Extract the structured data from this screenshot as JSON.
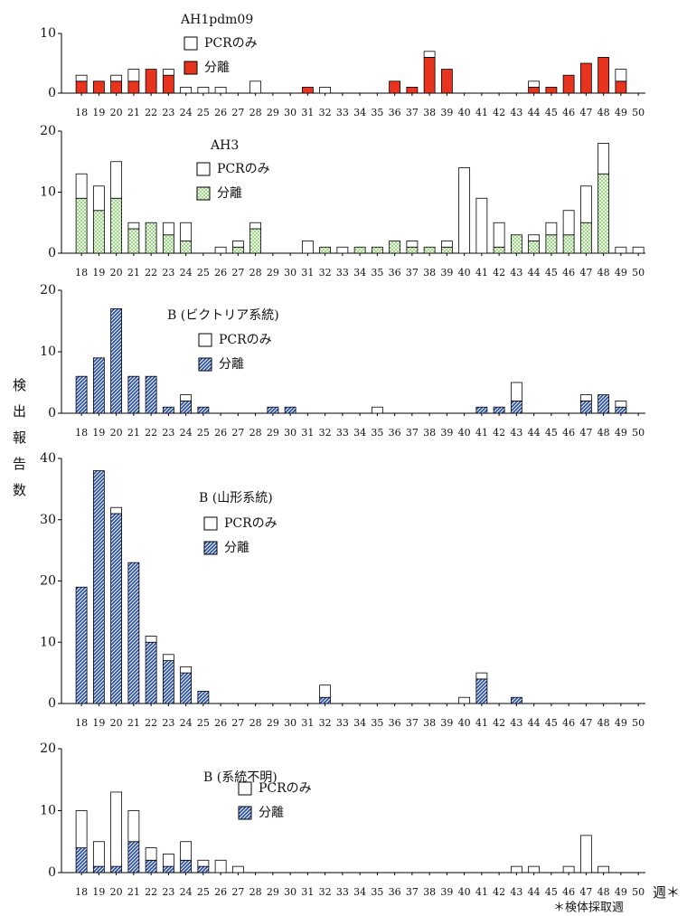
{
  "y_axis_label": "検出報告数",
  "x_axis_label": "週＊",
  "footnote": "＊検体採取週",
  "chart_data": [
    {
      "type": "stacked_bar",
      "title": "AH1pdm09",
      "categories": [
        "18",
        "19",
        "20",
        "21",
        "22",
        "23",
        "24",
        "25",
        "26",
        "27",
        "28",
        "29",
        "30",
        "31",
        "32",
        "33",
        "34",
        "35",
        "36",
        "37",
        "38",
        "39",
        "40",
        "41",
        "42",
        "43",
        "44",
        "45",
        "46",
        "47",
        "48",
        "49",
        "50"
      ],
      "series": [
        {
          "name": "分離",
          "color": "#e8341f",
          "values": [
            2,
            2,
            2,
            2,
            4,
            3,
            0,
            0,
            0,
            0,
            0,
            0,
            0,
            1,
            0,
            0,
            0,
            0,
            2,
            1,
            6,
            4,
            0,
            0,
            0,
            0,
            1,
            1,
            3,
            5,
            6,
            2,
            0
          ]
        },
        {
          "name": "PCRのみ",
          "color": "#ffffff",
          "values": [
            1,
            0,
            1,
            2,
            0,
            1,
            1,
            1,
            1,
            0,
            2,
            0,
            0,
            0,
            1,
            0,
            0,
            0,
            0,
            0,
            1,
            0,
            0,
            0,
            0,
            0,
            1,
            0,
            0,
            0,
            0,
            2,
            0
          ]
        }
      ],
      "ylim": [
        0,
        10
      ],
      "yticks": [
        0,
        10
      ]
    },
    {
      "type": "stacked_bar",
      "title": "AH3",
      "categories": [
        "18",
        "19",
        "20",
        "21",
        "22",
        "23",
        "24",
        "25",
        "26",
        "27",
        "28",
        "29",
        "30",
        "31",
        "32",
        "33",
        "34",
        "35",
        "36",
        "37",
        "38",
        "39",
        "40",
        "41",
        "42",
        "43",
        "44",
        "45",
        "46",
        "47",
        "48",
        "49",
        "50"
      ],
      "series": [
        {
          "name": "分離",
          "color": "#8cc86e",
          "hatch": "cross",
          "values": [
            9,
            7,
            9,
            4,
            5,
            3,
            2,
            0,
            0,
            1,
            4,
            0,
            0,
            0,
            1,
            0,
            1,
            1,
            2,
            1,
            1,
            1,
            0,
            0,
            1,
            3,
            2,
            3,
            3,
            5,
            13,
            0,
            0
          ]
        },
        {
          "name": "PCRのみ",
          "color": "#ffffff",
          "values": [
            4,
            4,
            6,
            1,
            0,
            2,
            3,
            0,
            1,
            1,
            1,
            0,
            0,
            2,
            0,
            1,
            0,
            0,
            0,
            1,
            0,
            1,
            14,
            9,
            4,
            0,
            1,
            2,
            4,
            6,
            5,
            1,
            1
          ]
        }
      ],
      "ylim": [
        0,
        20
      ],
      "yticks": [
        0,
        10,
        20
      ]
    },
    {
      "type": "stacked_bar",
      "title": "B (ビクトリア系統)",
      "categories": [
        "18",
        "19",
        "20",
        "21",
        "22",
        "23",
        "24",
        "25",
        "26",
        "27",
        "28",
        "29",
        "30",
        "31",
        "32",
        "33",
        "34",
        "35",
        "36",
        "37",
        "38",
        "39",
        "40",
        "41",
        "42",
        "43",
        "44",
        "45",
        "46",
        "47",
        "48",
        "49",
        "50"
      ],
      "series": [
        {
          "name": "分離",
          "color": "#2850b4",
          "hatch": "diagonal",
          "values": [
            6,
            9,
            17,
            6,
            6,
            1,
            2,
            1,
            0,
            0,
            0,
            1,
            1,
            0,
            0,
            0,
            0,
            0,
            0,
            0,
            0,
            0,
            0,
            1,
            1,
            2,
            0,
            0,
            0,
            2,
            3,
            1,
            0
          ]
        },
        {
          "name": "PCRのみ",
          "color": "#ffffff",
          "values": [
            0,
            0,
            0,
            0,
            0,
            0,
            1,
            0,
            0,
            0,
            0,
            0,
            0,
            0,
            0,
            0,
            0,
            1,
            0,
            0,
            0,
            0,
            0,
            0,
            0,
            3,
            0,
            0,
            0,
            1,
            0,
            1,
            0
          ]
        }
      ],
      "ylim": [
        0,
        20
      ],
      "yticks": [
        0,
        10,
        20
      ]
    },
    {
      "type": "stacked_bar",
      "title": "B (山形系統)",
      "categories": [
        "18",
        "19",
        "20",
        "21",
        "22",
        "23",
        "24",
        "25",
        "26",
        "27",
        "28",
        "29",
        "30",
        "31",
        "32",
        "33",
        "34",
        "35",
        "36",
        "37",
        "38",
        "39",
        "40",
        "41",
        "42",
        "43",
        "44",
        "45",
        "46",
        "47",
        "48",
        "49",
        "50"
      ],
      "series": [
        {
          "name": "分離",
          "color": "#2850b4",
          "hatch": "diagonal",
          "values": [
            19,
            38,
            31,
            23,
            10,
            7,
            5,
            2,
            0,
            0,
            0,
            0,
            0,
            0,
            1,
            0,
            0,
            0,
            0,
            0,
            0,
            0,
            0,
            4,
            0,
            1,
            0,
            0,
            0,
            0,
            0,
            0,
            0
          ]
        },
        {
          "name": "PCRのみ",
          "color": "#ffffff",
          "values": [
            0,
            0,
            1,
            0,
            1,
            1,
            1,
            0,
            0,
            0,
            0,
            0,
            0,
            0,
            2,
            0,
            0,
            0,
            0,
            0,
            0,
            0,
            1,
            1,
            0,
            0,
            0,
            0,
            0,
            0,
            0,
            0,
            0
          ]
        }
      ],
      "ylim": [
        0,
        40
      ],
      "yticks": [
        0,
        10,
        20,
        30,
        40
      ]
    },
    {
      "type": "stacked_bar",
      "title": "B (系統不明)",
      "categories": [
        "18",
        "19",
        "20",
        "21",
        "22",
        "23",
        "24",
        "25",
        "26",
        "27",
        "28",
        "29",
        "30",
        "31",
        "32",
        "33",
        "34",
        "35",
        "36",
        "37",
        "38",
        "39",
        "40",
        "41",
        "42",
        "43",
        "44",
        "45",
        "46",
        "47",
        "48",
        "49",
        "50"
      ],
      "series": [
        {
          "name": "分離",
          "color": "#2850b4",
          "hatch": "diagonal",
          "values": [
            4,
            1,
            1,
            5,
            2,
            1,
            2,
            1,
            0,
            0,
            0,
            0,
            0,
            0,
            0,
            0,
            0,
            0,
            0,
            0,
            0,
            0,
            0,
            0,
            0,
            0,
            0,
            0,
            0,
            0,
            0,
            0,
            0
          ]
        },
        {
          "name": "PCRのみ",
          "color": "#ffffff",
          "values": [
            6,
            4,
            12,
            5,
            2,
            2,
            3,
            1,
            2,
            1,
            0,
            0,
            0,
            0,
            0,
            0,
            0,
            0,
            0,
            0,
            0,
            0,
            0,
            0,
            0,
            1,
            1,
            0,
            1,
            6,
            1,
            0,
            0
          ]
        }
      ],
      "ylim": [
        0,
        20
      ],
      "yticks": [
        0,
        10,
        20
      ]
    }
  ]
}
